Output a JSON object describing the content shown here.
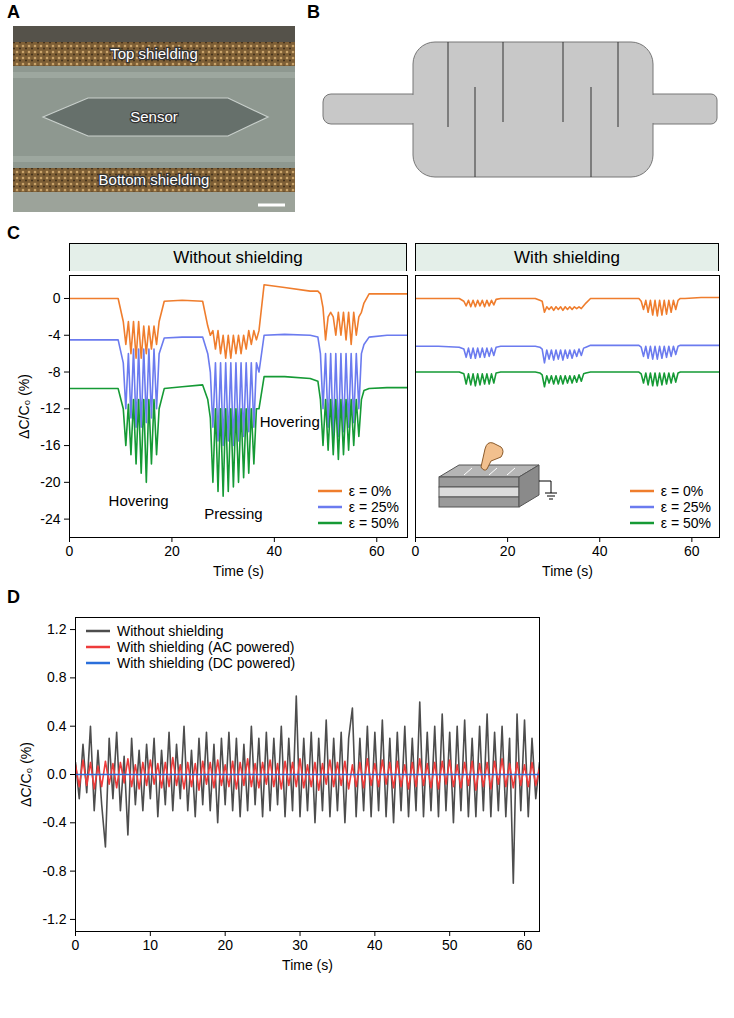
{
  "panel_A": {
    "panel": "A",
    "labels": [
      "Top shielding",
      "Sensor",
      "Bottom shielding"
    ]
  },
  "panel_B": {
    "panel": "B"
  },
  "chart_data": [
    {
      "panel": "C",
      "type": "line",
      "title": "Without shielding",
      "x_label": "Time (s)",
      "y_label": "ΔC/C₀ (%)",
      "xlim": [
        0,
        66
      ],
      "ylim": [
        -26,
        2.5
      ],
      "xticks": [
        0,
        20,
        40,
        60
      ],
      "yticks": [
        -24,
        -20,
        -16,
        -12,
        -8,
        -4,
        0
      ],
      "legend": "bottom-right",
      "annotations": [
        {
          "text": "Hovering",
          "x": 13.5,
          "y": -22
        },
        {
          "text": "Pressing",
          "x": 32,
          "y": -23.5
        },
        {
          "text": "Hovering",
          "x": 43,
          "y": -13.5
        }
      ],
      "x": [
        0,
        5,
        9.5,
        10.5,
        11,
        11.5,
        12,
        12.5,
        13,
        13.5,
        14,
        14.5,
        15,
        15.5,
        16,
        16.5,
        17,
        17.5,
        18.5,
        22,
        26,
        27,
        27.5,
        28,
        28.5,
        29,
        29.5,
        30,
        30.5,
        31,
        31.5,
        32,
        32.5,
        33,
        33.5,
        34,
        34.5,
        35,
        35.5,
        36,
        36.5,
        37,
        38,
        42,
        47,
        48.5,
        49,
        49.5,
        50,
        50.5,
        51,
        51.5,
        52,
        52.5,
        53,
        53.5,
        54,
        54.5,
        55,
        55.5,
        56,
        56.5,
        57,
        57.5,
        58.5,
        62,
        66
      ],
      "series": [
        {
          "name": "ε = 0%",
          "color": "#ef7d2d",
          "values": [
            0,
            0,
            0,
            -2.5,
            -5,
            -2.5,
            -6,
            -2.5,
            -6.5,
            -2.5,
            -6.5,
            -3,
            -6,
            -3,
            -5.5,
            -3,
            -5,
            -2.5,
            -0.3,
            -0.2,
            -0.3,
            -3,
            -4,
            -3.5,
            -5.5,
            -3.5,
            -6,
            -4,
            -6.5,
            -4,
            -6.5,
            -4,
            -6,
            -4,
            -6,
            -4,
            -5.5,
            -3.5,
            -5,
            -3.5,
            -4.5,
            -3.5,
            1.5,
            1.2,
            0.8,
            0.8,
            0.5,
            -1,
            -4.5,
            -2,
            -1.5,
            -2,
            -4,
            -1.5,
            -4,
            -1.5,
            -4.5,
            -1.5,
            -5,
            -1.5,
            -4,
            -2,
            -1.5,
            -0.5,
            0.5,
            0.5,
            0.5
          ]
        },
        {
          "name": "ε = 25%",
          "color": "#6b7bef",
          "values": [
            -4.5,
            -4.5,
            -4.5,
            -7,
            -12,
            -6,
            -13,
            -5.5,
            -14,
            -5.5,
            -14,
            -5.5,
            -13.5,
            -5.5,
            -13,
            -5.5,
            -12,
            -6,
            -4.3,
            -4.2,
            -4.2,
            -6,
            -8,
            -14,
            -7,
            -15.5,
            -7,
            -16,
            -7,
            -15.5,
            -7,
            -16,
            -7,
            -15.5,
            -7,
            -15,
            -7,
            -14.5,
            -7,
            -14,
            -7,
            -8,
            -4,
            -3.9,
            -4,
            -4.2,
            -6,
            -12,
            -6,
            -14,
            -6,
            -15,
            -6,
            -15,
            -6,
            -14.5,
            -6,
            -14,
            -6,
            -13.5,
            -6,
            -12,
            -6,
            -5,
            -4.2,
            -4,
            -4
          ]
        },
        {
          "name": "ε = 50%",
          "color": "#159a35",
          "values": [
            -9.8,
            -9.8,
            -9.8,
            -12,
            -16,
            -11.5,
            -17,
            -11,
            -18,
            -11,
            -19,
            -11,
            -20,
            -11,
            -18,
            -11,
            -17,
            -12,
            -9.8,
            -9.6,
            -9.4,
            -11,
            -13,
            -20,
            -12,
            -21,
            -12,
            -21.5,
            -12,
            -21,
            -12,
            -20.5,
            -12,
            -20,
            -12,
            -19.5,
            -12,
            -19,
            -12,
            -18,
            -12,
            -12,
            -8.5,
            -8.5,
            -8.7,
            -9,
            -11,
            -16,
            -11,
            -16.5,
            -11,
            -17,
            -11,
            -17.5,
            -11,
            -17,
            -11,
            -16.5,
            -11,
            -16,
            -11,
            -15,
            -11,
            -10,
            -9.8,
            -9.7,
            -9.7
          ]
        }
      ]
    },
    {
      "type": "line",
      "title": "With shielding",
      "x_label": "Time (s)",
      "tick_labels": "x",
      "xlim": [
        0,
        66
      ],
      "ylim": [
        -26,
        2.5
      ],
      "xticks": [
        0,
        20,
        40,
        60
      ],
      "legend": "bottom-right",
      "x": [
        0,
        5,
        9.5,
        10.5,
        11,
        11.5,
        12,
        12.5,
        13,
        13.5,
        14,
        14.5,
        15,
        15.5,
        16,
        16.5,
        17,
        17.5,
        18.5,
        22,
        26,
        27,
        27.5,
        28,
        28.5,
        29,
        29.5,
        30,
        30.5,
        31,
        31.5,
        32,
        32.5,
        33,
        33.5,
        34,
        34.5,
        35,
        35.5,
        36,
        36.5,
        37,
        38,
        42,
        47,
        48.5,
        49,
        49.5,
        50,
        50.5,
        51,
        51.5,
        52,
        52.5,
        53,
        53.5,
        54,
        54.5,
        55,
        55.5,
        56,
        56.5,
        57,
        57.5,
        58.5,
        62,
        66
      ],
      "series": [
        {
          "name": "ε = 0%",
          "color": "#ef7d2d",
          "values": [
            0,
            0,
            0,
            -0.3,
            -0.8,
            -0.2,
            -0.9,
            -0.2,
            -0.9,
            -0.2,
            -0.8,
            -0.2,
            -0.9,
            -0.2,
            -0.8,
            -0.2,
            -0.7,
            -0.1,
            0,
            0,
            0,
            -0.2,
            -0.3,
            -1.5,
            -0.9,
            -1.2,
            -0.9,
            -1.3,
            -0.9,
            -1.2,
            -0.9,
            -1.3,
            -0.9,
            -1.2,
            -0.9,
            -1.2,
            -0.9,
            -1.1,
            -0.9,
            -1.1,
            -0.8,
            -0.5,
            0,
            0,
            0,
            0,
            -0.3,
            -1.2,
            -0.2,
            -1.5,
            -0.2,
            -1.8,
            -0.2,
            -1.9,
            -0.2,
            -1.8,
            -0.2,
            -1.7,
            -0.2,
            -1.5,
            -0.2,
            -1.2,
            -0.2,
            0,
            0,
            0.1,
            0.1
          ]
        },
        {
          "name": "ε = 25%",
          "color": "#6b7bef",
          "values": [
            -5.2,
            -5.2,
            -5.3,
            -5.5,
            -6.4,
            -5.4,
            -6.5,
            -5.4,
            -6.5,
            -5.4,
            -6.4,
            -5.4,
            -6.4,
            -5.4,
            -6.3,
            -5.4,
            -6.2,
            -5.3,
            -5.2,
            -5.2,
            -5.2,
            -5.3,
            -5.5,
            -7,
            -5.6,
            -6.6,
            -5.6,
            -6.7,
            -5.6,
            -6.6,
            -5.6,
            -6.7,
            -5.6,
            -6.5,
            -5.6,
            -6.5,
            -5.6,
            -6.3,
            -5.5,
            -6.2,
            -5.4,
            -5.3,
            -5.1,
            -5.1,
            -5.1,
            -5.1,
            -5.3,
            -6.3,
            -5.2,
            -6.5,
            -5.2,
            -6.6,
            -5.2,
            -6.6,
            -5.2,
            -6.5,
            -5.2,
            -6.4,
            -5.2,
            -6.3,
            -5.2,
            -6.1,
            -5.2,
            -5.1,
            -5.1,
            -5.1,
            -5.1
          ]
        },
        {
          "name": "ε = 50%",
          "color": "#159a35",
          "values": [
            -8,
            -8,
            -8,
            -8.2,
            -9.3,
            -8.2,
            -9.4,
            -8.2,
            -9.5,
            -8.2,
            -9.4,
            -8.2,
            -9.3,
            -8.2,
            -9.3,
            -8.2,
            -9.2,
            -8.1,
            -8,
            -8,
            -8,
            -8.1,
            -8.3,
            -9.6,
            -8.4,
            -9.2,
            -8.4,
            -9.3,
            -8.4,
            -9.3,
            -8.4,
            -9.3,
            -8.4,
            -9.2,
            -8.4,
            -9.2,
            -8.4,
            -9.1,
            -8.3,
            -9,
            -8.2,
            -8.1,
            -8,
            -8,
            -8,
            -8,
            -8.2,
            -9.2,
            -8.1,
            -9.4,
            -8.1,
            -9.5,
            -8.1,
            -9.5,
            -8.1,
            -9.4,
            -8.1,
            -9.3,
            -8.1,
            -9.2,
            -8.1,
            -9.1,
            -8.1,
            -8,
            -8,
            -8,
            -8
          ]
        }
      ]
    },
    {
      "panel": "D",
      "type": "line",
      "x_label": "Time (s)",
      "y_label": "ΔC/C₀ (%)",
      "xlim": [
        0,
        62
      ],
      "ylim": [
        -1.3,
        1.3
      ],
      "xticks": [
        0,
        10,
        20,
        30,
        40,
        50,
        60
      ],
      "yticks": [
        -1.2,
        -0.8,
        -0.4,
        {
          "value": 0,
          "label": "0.0"
        },
        0.4,
        0.8,
        1.2
      ],
      "legend": "top-left",
      "x": [
        0,
        0.5,
        1,
        1.5,
        2,
        2.5,
        3,
        3.5,
        4,
        4.5,
        5,
        5.5,
        6,
        6.5,
        7,
        7.5,
        8,
        8.5,
        9,
        9.5,
        10,
        10.5,
        11,
        11.5,
        12,
        12.5,
        13,
        13.5,
        14,
        14.5,
        15,
        15.5,
        16,
        16.5,
        17,
        17.5,
        18,
        18.5,
        19,
        19.5,
        20,
        20.5,
        21,
        21.5,
        22,
        22.5,
        23,
        23.5,
        24,
        24.5,
        25,
        25.5,
        26,
        26.5,
        27,
        27.5,
        28,
        28.5,
        29,
        29.5,
        30,
        30.5,
        31,
        31.5,
        32,
        32.5,
        33,
        33.5,
        34,
        34.5,
        35,
        35.5,
        36,
        36.5,
        37,
        37.5,
        38,
        38.5,
        39,
        39.5,
        40,
        40.5,
        41,
        41.5,
        42,
        42.5,
        43,
        43.5,
        44,
        44.5,
        45,
        45.5,
        46,
        46.5,
        47,
        47.5,
        48,
        48.5,
        49,
        49.5,
        50,
        50.5,
        51,
        51.5,
        52,
        52.5,
        53,
        53.5,
        54,
        54.5,
        55,
        55.5,
        56,
        56.5,
        57,
        57.5,
        58,
        58.5,
        59,
        59.5,
        60,
        60.5,
        61,
        61.5,
        62
      ],
      "series": [
        {
          "name": "Without shielding",
          "color": "#4d4d4d",
          "values": [
            0.1,
            -0.2,
            0.25,
            -0.15,
            0.4,
            -0.3,
            0.2,
            -0.25,
            -0.6,
            0.3,
            -0.2,
            0.35,
            -0.3,
            0.15,
            -0.5,
            0.3,
            -0.25,
            0.2,
            -0.3,
            0.25,
            -0.2,
            0.3,
            -0.35,
            0.2,
            -0.25,
            0.35,
            -0.3,
            0.25,
            -0.2,
            0.4,
            -0.3,
            0.2,
            -0.35,
            0.3,
            -0.25,
            0.35,
            -0.3,
            0.25,
            -0.4,
            0.3,
            -0.25,
            0.35,
            -0.3,
            0.3,
            -0.35,
            0.25,
            -0.3,
            0.4,
            -0.25,
            0.3,
            -0.35,
            0.35,
            -0.3,
            0.3,
            -0.25,
            0.4,
            -0.35,
            0.3,
            -0.3,
            0.65,
            -0.35,
            0.3,
            -0.3,
            0.35,
            -0.4,
            0.3,
            -0.3,
            0.45,
            -0.35,
            0.3,
            -0.3,
            0.35,
            -0.4,
            0.3,
            0.55,
            -0.35,
            0.3,
            -0.3,
            0.4,
            -0.35,
            0.35,
            -0.3,
            0.45,
            -0.35,
            0.3,
            -0.4,
            0.35,
            -0.3,
            0.4,
            -0.35,
            0.3,
            -0.3,
            0.6,
            -0.35,
            0.35,
            -0.3,
            0.4,
            -0.35,
            0.5,
            -0.3,
            0.35,
            -0.4,
            0.4,
            -0.3,
            0.45,
            -0.35,
            0.3,
            -0.35,
            0.4,
            -0.3,
            0.5,
            -0.35,
            0.35,
            -0.3,
            0.4,
            -0.35,
            0.3,
            -0.9,
            0.5,
            -0.3,
            0.45,
            -0.35,
            0.3,
            -0.2,
            0.1
          ]
        },
        {
          "name": "With shielding (AC powered)",
          "color": "#ee3b3b",
          "values": [
            0.08,
            -0.1,
            0.12,
            -0.09,
            0.1,
            -0.12,
            0.07,
            -0.1,
            0.11,
            -0.08,
            0.09,
            -0.11,
            0.1,
            -0.07,
            0.13,
            -0.1,
            0.08,
            -0.12,
            0.1,
            -0.09,
            0.12,
            -0.08,
            0.09,
            -0.11,
            0.1,
            -0.1,
            0.14,
            -0.09,
            0.08,
            -0.12,
            0.1,
            -0.1,
            0.09,
            -0.13,
            0.11,
            -0.08,
            0.1,
            -0.11,
            0.12,
            -0.09,
            0.08,
            -0.1,
            0.11,
            -0.12,
            0.1,
            -0.09,
            0.13,
            -0.1,
            0.09,
            -0.11,
            0.1,
            -0.08,
            0.12,
            -0.1,
            0.09,
            -0.12,
            0.11,
            -0.09,
            0.1,
            -0.1,
            0.13,
            -0.11,
            0.08,
            -0.1,
            0.1,
            -0.13,
            0.09,
            -0.08,
            0.12,
            -0.1,
            0.1,
            -0.09,
            0.11,
            -0.12,
            0.08,
            -0.1,
            0.1,
            -0.11,
            0.13,
            -0.09,
            0.09,
            -0.1,
            0.12,
            -0.08,
            0.1,
            -0.11,
            0.11,
            -0.1,
            0.08,
            -0.12,
            0.1,
            -0.1,
            0.13,
            -0.09,
            0.09,
            -0.11,
            0.1,
            -0.12,
            0.11,
            -0.08,
            0.12,
            -0.1,
            0.08,
            -0.11,
            0.1,
            -0.09,
            0.11,
            -0.13,
            0.09,
            -0.1,
            0.1,
            -0.12,
            0.11,
            -0.08,
            0.13,
            -0.1,
            0.09,
            -0.11,
            0.1,
            -0.09,
            0.08,
            -0.1,
            0.1,
            -0.09,
            0.05
          ]
        },
        {
          "name": "With shielding (DC powered)",
          "color": "#2a6fdb",
          "values": [
            0,
            0,
            0,
            0,
            0,
            0,
            0,
            0,
            0,
            0,
            0,
            0,
            0,
            0,
            0,
            0,
            0,
            0,
            0,
            0,
            0,
            0,
            0,
            0,
            0,
            0,
            0,
            0,
            0,
            0,
            0,
            0,
            0,
            0,
            0,
            0,
            0,
            0,
            0,
            0,
            0,
            0,
            0,
            0,
            0,
            0,
            0,
            0,
            0,
            0,
            0,
            0,
            0,
            0,
            0,
            0,
            0,
            0,
            0,
            0,
            0,
            0,
            0,
            0,
            0,
            0,
            0,
            0,
            0,
            0,
            0,
            0,
            0,
            0,
            0,
            0,
            0,
            0,
            0,
            0,
            0,
            0,
            0,
            0,
            0,
            0,
            0,
            0,
            0,
            0,
            0,
            0,
            0,
            0,
            0,
            0,
            0,
            0,
            0,
            0,
            0,
            0,
            0,
            0,
            0,
            0,
            0,
            0,
            0,
            0,
            0,
            0,
            0,
            0,
            0,
            0,
            0,
            0,
            0,
            0,
            0,
            0,
            0,
            0,
            0
          ]
        }
      ]
    }
  ]
}
